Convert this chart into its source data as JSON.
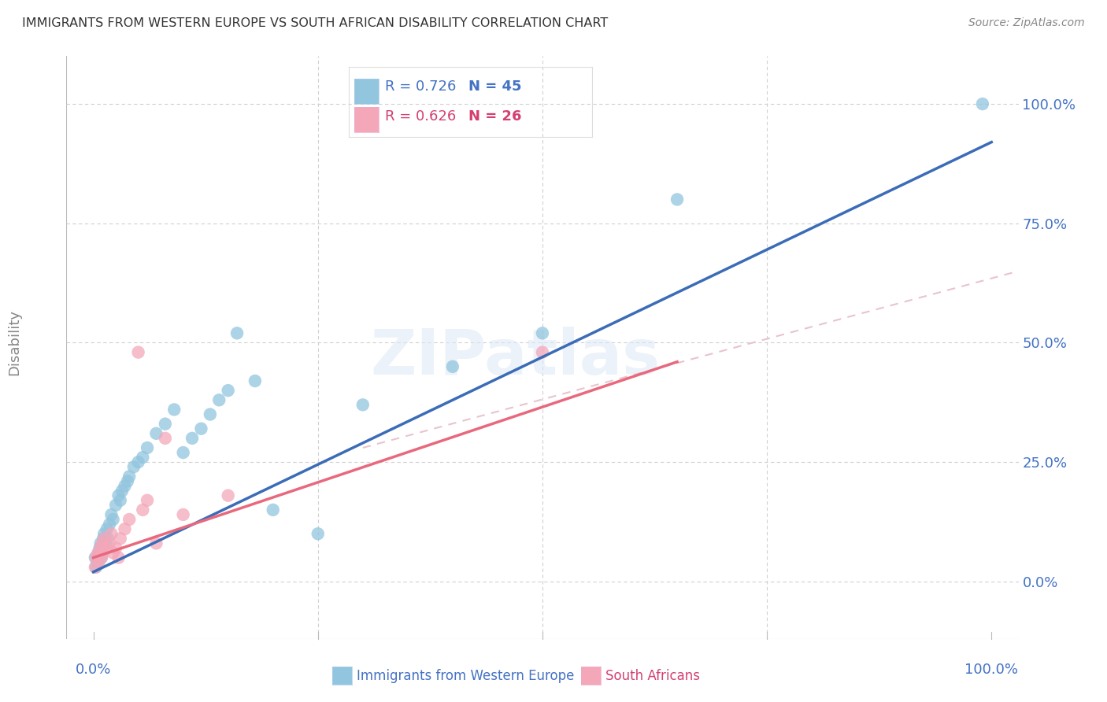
{
  "title": "IMMIGRANTS FROM WESTERN EUROPE VS SOUTH AFRICAN DISABILITY CORRELATION CHART",
  "source": "Source: ZipAtlas.com",
  "ylabel": "Disability",
  "ytick_labels": [
    "0.0%",
    "25.0%",
    "50.0%",
    "75.0%",
    "100.0%"
  ],
  "xtick_labels": [
    "0.0%",
    "100.0%"
  ],
  "legend_blue_r": "R = 0.726",
  "legend_blue_n": "N = 45",
  "legend_pink_r": "R = 0.626",
  "legend_pink_n": "N = 26",
  "legend_label_blue": "Immigrants from Western Europe",
  "legend_label_pink": "South Africans",
  "watermark": "ZIPatlas",
  "blue_scatter_x": [
    0.2,
    0.3,
    0.5,
    0.6,
    0.7,
    0.8,
    0.9,
    1.0,
    1.1,
    1.2,
    1.3,
    1.5,
    1.6,
    1.8,
    2.0,
    2.2,
    2.5,
    2.8,
    3.0,
    3.2,
    3.5,
    3.8,
    4.0,
    4.5,
    5.0,
    5.5,
    6.0,
    7.0,
    8.0,
    9.0,
    10.0,
    11.0,
    12.0,
    13.0,
    14.0,
    15.0,
    16.0,
    18.0,
    20.0,
    25.0,
    30.0,
    40.0,
    50.0,
    65.0,
    99.0
  ],
  "blue_scatter_y": [
    5.0,
    3.0,
    4.0,
    6.0,
    7.0,
    8.0,
    5.0,
    7.0,
    9.0,
    10.0,
    8.0,
    11.0,
    9.0,
    12.0,
    14.0,
    13.0,
    16.0,
    18.0,
    17.0,
    19.0,
    20.0,
    21.0,
    22.0,
    24.0,
    25.0,
    26.0,
    28.0,
    31.0,
    33.0,
    36.0,
    27.0,
    30.0,
    32.0,
    35.0,
    38.0,
    40.0,
    52.0,
    42.0,
    15.0,
    10.0,
    37.0,
    45.0,
    52.0,
    80.0,
    100.0
  ],
  "pink_scatter_x": [
    0.2,
    0.3,
    0.5,
    0.6,
    0.8,
    0.9,
    1.0,
    1.1,
    1.2,
    1.5,
    1.8,
    2.0,
    2.2,
    2.5,
    2.8,
    3.0,
    3.5,
    4.0,
    5.0,
    5.5,
    6.0,
    7.0,
    8.0,
    10.0,
    15.0,
    50.0
  ],
  "pink_scatter_y": [
    3.0,
    5.0,
    6.0,
    4.0,
    7.0,
    5.0,
    8.0,
    6.0,
    9.0,
    7.0,
    8.0,
    10.0,
    6.0,
    7.0,
    5.0,
    9.0,
    11.0,
    13.0,
    48.0,
    15.0,
    17.0,
    8.0,
    30.0,
    14.0,
    18.0,
    48.0
  ],
  "blue_color": "#92c5de",
  "pink_color": "#f4a7b9",
  "blue_line_color": "#3b6cb7",
  "pink_line_color": "#e8697d",
  "pink_dashed_color": "#e8c4cc",
  "grid_color": "#d0d0d0",
  "background_color": "#ffffff",
  "tick_label_color": "#4472c4",
  "ylabel_color": "#888888",
  "title_color": "#333333",
  "source_color": "#888888",
  "xlim": [
    -3,
    103
  ],
  "ylim": [
    -12,
    110
  ],
  "blue_line_x0": 0,
  "blue_line_y0": 2,
  "blue_line_x1": 100,
  "blue_line_y1": 92,
  "pink_line_x0": 0,
  "pink_line_y0": 5,
  "pink_line_x1": 65,
  "pink_line_y1": 46,
  "pink_dashed_x0": 30,
  "pink_dashed_y0": 28,
  "pink_dashed_x1": 103,
  "pink_dashed_y1": 65
}
